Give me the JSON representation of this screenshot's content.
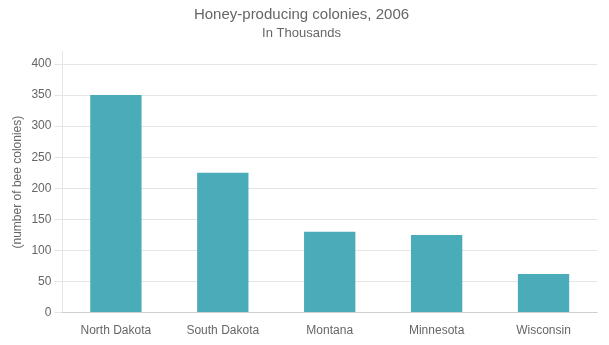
{
  "chart_data": {
    "type": "bar",
    "title": "Honey-producing colonies, 2006",
    "subtitle": "In Thousands",
    "ylabel": "(number of bee colonies)",
    "categories": [
      "North Dakota",
      "South Dakota",
      "Montana",
      "Minnesota",
      "Wisconsin"
    ],
    "values": [
      350,
      225,
      130,
      125,
      62
    ],
    "color": "#4aacb8",
    "ylim": [
      0,
      420
    ],
    "yticks": [
      0,
      50,
      100,
      150,
      200,
      250,
      300,
      350,
      400
    ],
    "grid": true
  }
}
